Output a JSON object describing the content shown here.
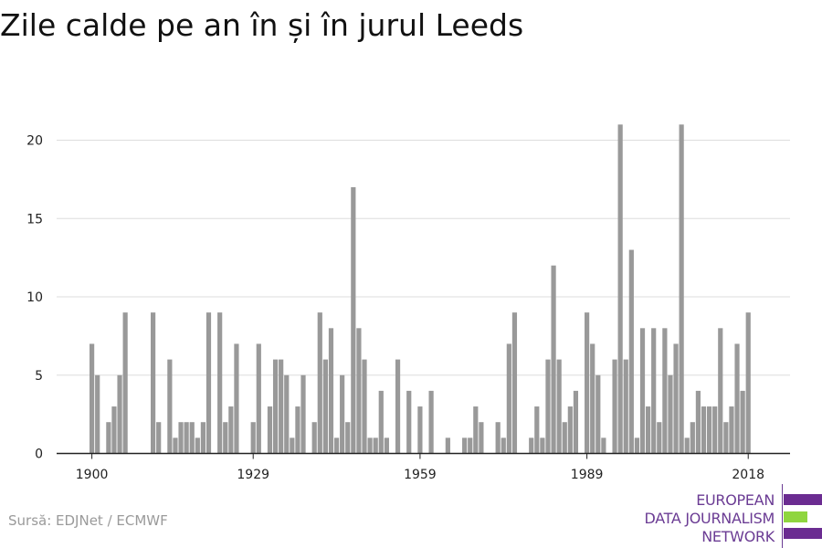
{
  "title": "Zile calde pe an în și în jurul Leeds",
  "source": "Sursă: EDJNet / ECMWF",
  "logo": {
    "lines": [
      "EUROPEAN",
      "DATA JOURNALISM",
      "NETWORK"
    ],
    "colors": {
      "purple": "#6b2c91",
      "green": "#8fd53f"
    }
  },
  "colors": {
    "bar": "#999999",
    "grid": "#dddddd",
    "axis": "#222222",
    "text": "#222222"
  },
  "chart_data": {
    "type": "bar",
    "title": "Zile calde pe an în și în jurul Leeds",
    "xlabel": "",
    "ylabel": "",
    "x_start": 1900,
    "x_ticks": [
      1900,
      1929,
      1959,
      1989,
      2018
    ],
    "y_ticks": [
      0,
      5,
      10,
      15,
      20
    ],
    "ylim": [
      0,
      22
    ],
    "grid": true,
    "years": [
      1900,
      1901,
      1902,
      1903,
      1904,
      1905,
      1906,
      1907,
      1908,
      1909,
      1910,
      1911,
      1912,
      1913,
      1914,
      1915,
      1916,
      1917,
      1918,
      1919,
      1920,
      1921,
      1922,
      1923,
      1924,
      1925,
      1926,
      1927,
      1928,
      1929,
      1930,
      1931,
      1932,
      1933,
      1934,
      1935,
      1936,
      1937,
      1938,
      1939,
      1940,
      1941,
      1942,
      1943,
      1944,
      1945,
      1946,
      1947,
      1948,
      1949,
      1950,
      1951,
      1952,
      1953,
      1954,
      1955,
      1956,
      1957,
      1958,
      1959,
      1960,
      1961,
      1962,
      1963,
      1964,
      1965,
      1966,
      1967,
      1968,
      1969,
      1970,
      1971,
      1972,
      1973,
      1974,
      1975,
      1976,
      1977,
      1978,
      1979,
      1980,
      1981,
      1982,
      1983,
      1984,
      1985,
      1986,
      1987,
      1988,
      1989,
      1990,
      1991,
      1992,
      1993,
      1994,
      1995,
      1996,
      1997,
      1998,
      1999,
      2000,
      2001,
      2002,
      2003,
      2004,
      2005,
      2006,
      2007,
      2008,
      2009,
      2010,
      2011,
      2012,
      2013,
      2014,
      2015,
      2016,
      2017,
      2018
    ],
    "values": [
      7,
      5,
      0,
      2,
      3,
      5,
      9,
      0,
      0,
      0,
      0,
      9,
      2,
      0,
      6,
      1,
      2,
      2,
      2,
      1,
      2,
      9,
      0,
      9,
      2,
      3,
      7,
      0,
      0,
      2,
      7,
      0,
      3,
      6,
      6,
      5,
      1,
      3,
      5,
      0,
      2,
      9,
      6,
      8,
      1,
      5,
      2,
      17,
      8,
      6,
      1,
      1,
      4,
      1,
      0,
      6,
      0,
      4,
      0,
      3,
      0,
      4,
      0,
      0,
      1,
      0,
      0,
      1,
      1,
      3,
      2,
      0,
      0,
      2,
      1,
      7,
      9,
      0,
      0,
      1,
      3,
      1,
      6,
      12,
      6,
      2,
      3,
      4,
      0,
      9,
      7,
      5,
      1,
      0,
      6,
      21,
      6,
      13,
      1,
      8,
      3,
      8,
      2,
      8,
      5,
      7,
      21,
      1,
      2,
      4,
      3,
      3,
      3,
      8,
      2,
      3,
      7,
      4,
      9
    ]
  }
}
